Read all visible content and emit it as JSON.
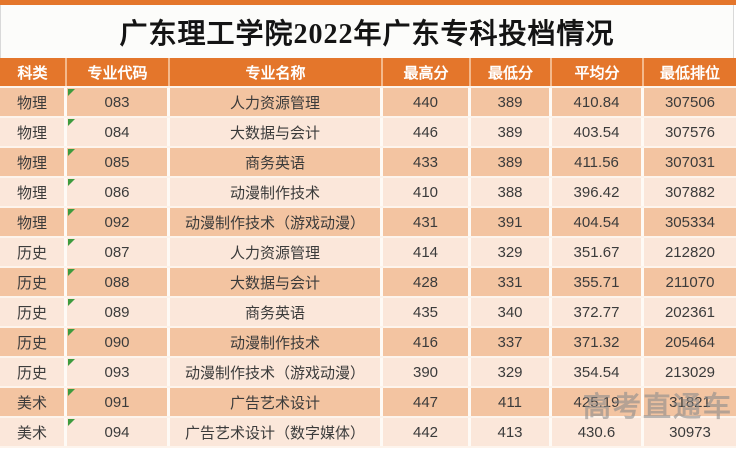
{
  "page": {
    "title": "广东理工学院2022年广东专科投档情况"
  },
  "chart_data": {
    "type": "table",
    "title": "广东理工学院2022年广东专科投档情况",
    "columns": [
      "科类",
      "专业代码",
      "专业名称",
      "最高分",
      "最低分",
      "平均分",
      "最低排位"
    ],
    "rows": [
      [
        "物理",
        "083",
        "人力资源管理",
        "440",
        "389",
        "410.84",
        "307506"
      ],
      [
        "物理",
        "084",
        "大数据与会计",
        "446",
        "389",
        "403.54",
        "307576"
      ],
      [
        "物理",
        "085",
        "商务英语",
        "433",
        "389",
        "411.56",
        "307031"
      ],
      [
        "物理",
        "086",
        "动漫制作技术",
        "410",
        "388",
        "396.42",
        "307882"
      ],
      [
        "物理",
        "092",
        "动漫制作技术（游戏动漫）",
        "431",
        "391",
        "404.54",
        "305334"
      ],
      [
        "历史",
        "087",
        "人力资源管理",
        "414",
        "329",
        "351.67",
        "212820"
      ],
      [
        "历史",
        "088",
        "大数据与会计",
        "428",
        "331",
        "355.71",
        "211070"
      ],
      [
        "历史",
        "089",
        "商务英语",
        "435",
        "340",
        "372.77",
        "202361"
      ],
      [
        "历史",
        "090",
        "动漫制作技术",
        "416",
        "337",
        "371.32",
        "205464"
      ],
      [
        "历史",
        "093",
        "动漫制作技术（游戏动漫）",
        "390",
        "329",
        "354.54",
        "213029"
      ],
      [
        "美术",
        "091",
        "广告艺术设计",
        "447",
        "411",
        "425.19",
        "31821"
      ],
      [
        "美术",
        "094",
        "广告艺术设计（数字媒体）",
        "442",
        "413",
        "430.6",
        "30973"
      ]
    ]
  },
  "watermark": {
    "text": "高考直通车"
  },
  "colors": {
    "accent_orange": "#E4762B",
    "row_shade_dark": "#F3C4A1",
    "row_shade_light": "#FBE7DA",
    "marker_green": "#3E9B3E",
    "watermark_gray": "#8C8C8C"
  }
}
